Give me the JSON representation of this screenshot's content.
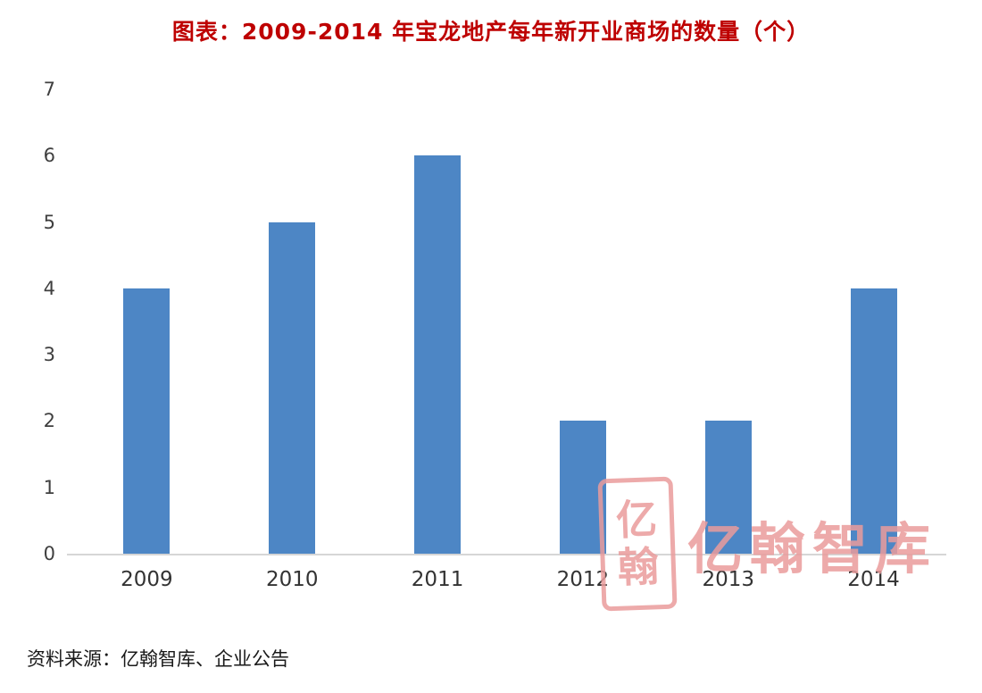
{
  "title": "图表：2009-2014 年宝龙地产每年新开业商场的数量（个）",
  "source": {
    "text": "资料来源：亿翰智库、企业公告"
  },
  "watermark": {
    "seal_char1": "亿",
    "seal_char2": "翰",
    "brand": "亿翰智库"
  },
  "colors": {
    "bar": "#4d86c5",
    "title": "#be0000",
    "watermark": "#ea9c9c",
    "axis_line": "#d6d6d6",
    "tick_text": "#3f3f3f"
  },
  "chart_data": {
    "type": "bar",
    "title": "图表：2009-2014 年宝龙地产每年新开业商场的数量（个）",
    "categories": [
      "2009",
      "2010",
      "2011",
      "2012",
      "2013",
      "2014"
    ],
    "values": [
      4,
      5,
      6,
      2,
      2,
      4
    ],
    "xlabel": "",
    "ylabel": "",
    "ylim": [
      0,
      7
    ],
    "yticks": [
      0,
      1,
      2,
      3,
      4,
      5,
      6,
      7
    ],
    "grid": false,
    "legend": "none",
    "bar_color": "#4d86c5"
  }
}
